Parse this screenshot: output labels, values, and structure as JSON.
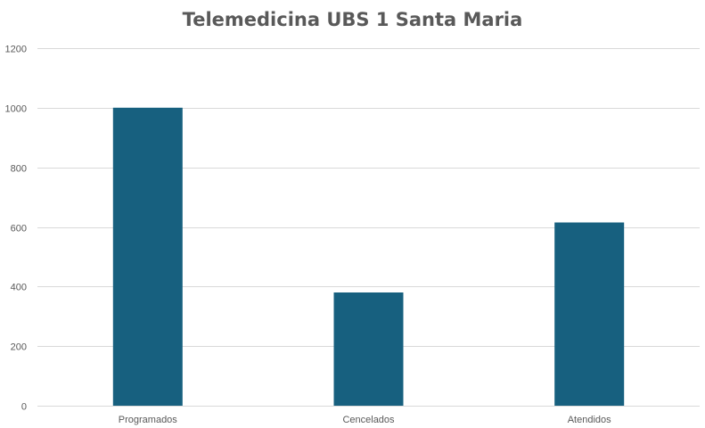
{
  "chart_data": {
    "type": "bar",
    "title": "Telemedicina UBS 1 Santa Maria",
    "categories": [
      "Programados",
      "Cencelados",
      "Atendidos"
    ],
    "values": [
      1000,
      380,
      615
    ],
    "ylim": [
      0,
      1200
    ],
    "yticks": [
      0,
      200,
      400,
      600,
      800,
      1000,
      1200
    ],
    "grid": true,
    "legend": "none",
    "bar_color": "#17607f",
    "xlabel": "",
    "ylabel": ""
  }
}
